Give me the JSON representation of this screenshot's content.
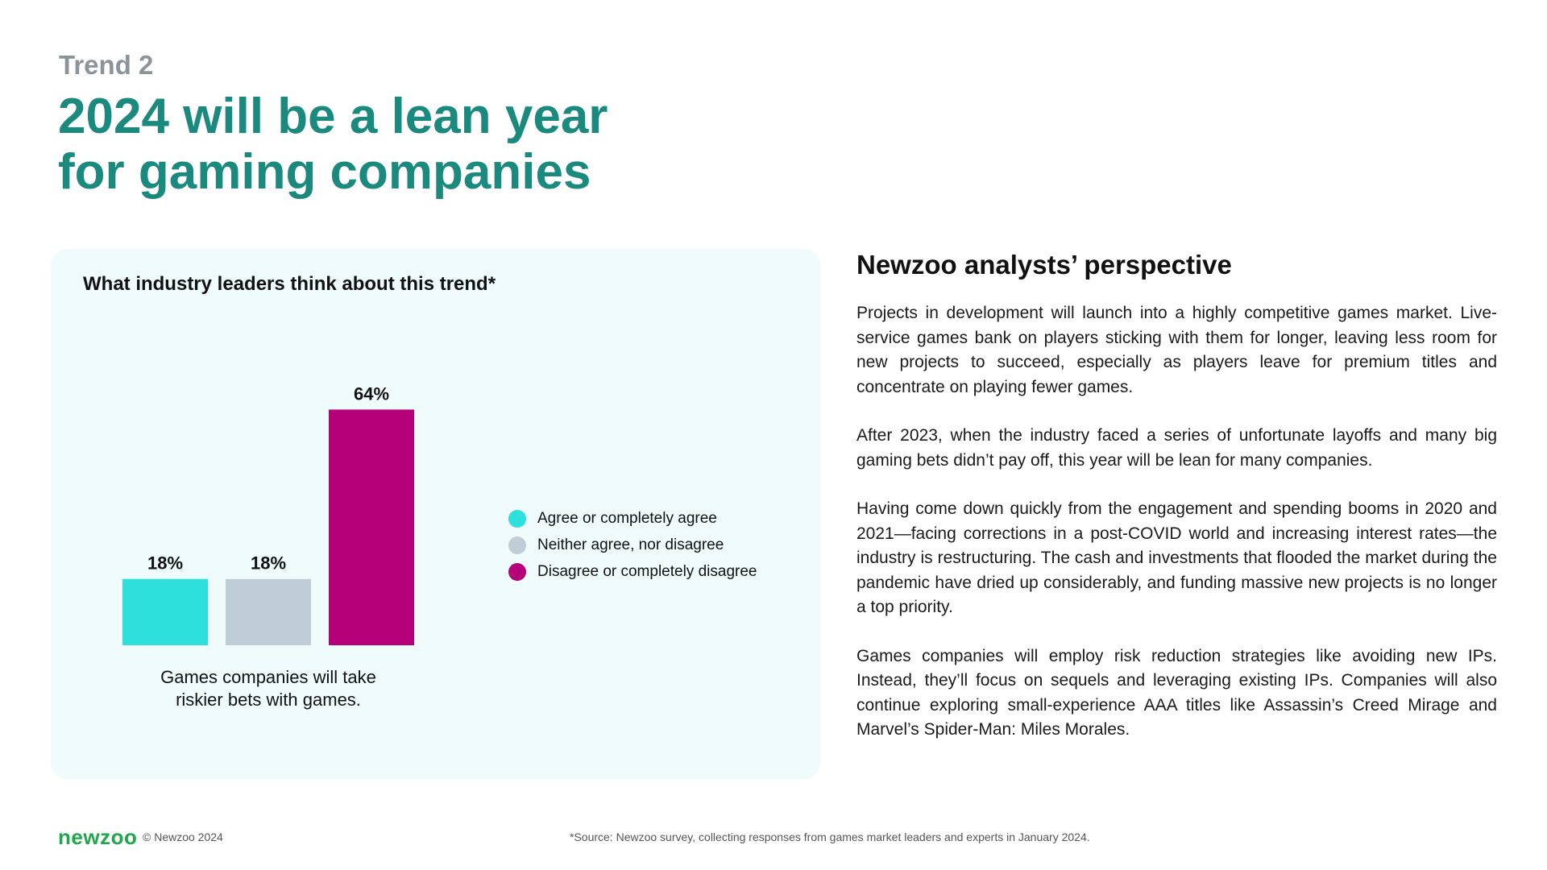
{
  "header": {
    "trend_label": "Trend 2",
    "title_line1": "2024 will be a lean year",
    "title_line2": "for gaming companies"
  },
  "chart_panel": {
    "title": "What industry leaders think about this trend*"
  },
  "chart_data": {
    "type": "bar",
    "title": "What industry leaders think about this trend*",
    "categories": [
      "Games companies will take riskier bets with games."
    ],
    "category_lines": [
      "Games companies will take",
      "riskier bets with games."
    ],
    "ylim": [
      0,
      70
    ],
    "series": [
      {
        "name": "Agree or completely agree",
        "values": [
          18
        ],
        "label": "18%",
        "color": "#2de0dc"
      },
      {
        "name": "Neither agree, nor disagree",
        "values": [
          18
        ],
        "label": "18%",
        "color": "#c0ccd6"
      },
      {
        "name": "Disagree or completely disagree",
        "values": [
          64
        ],
        "label": "64%",
        "color": "#b5007a"
      }
    ],
    "legend_position": "right"
  },
  "perspective": {
    "heading": "Newzoo analysts’ perspective",
    "paragraphs": [
      "Projects in development will launch into a highly competitive games market. Live-service games bank on players sticking with them for longer, leaving less room for new projects to succeed, especially as players leave for premium titles and concentrate on playing fewer games.",
      "After 2023, when the industry faced a series of unfortunate layoffs and many big gaming bets didn’t pay off, this year will be lean for many companies.",
      "Having come down quickly from the engagement and spending booms in 2020 and 2021—facing corrections in a post-COVID world and increasing interest rates—the industry is restructuring. The cash and investments that flooded the market during the pandemic have dried up considerably, and funding massive new projects is no longer a top priority.",
      "Games companies will employ risk reduction strategies like avoiding new IPs. Instead, they’ll focus on sequels and leveraging existing IPs. Companies will also continue exploring small-experience AAA titles like Assassin’s Creed Mirage and Marvel’s Spider-Man: Miles Morales."
    ]
  },
  "footer": {
    "logo": "newzoo",
    "copyright": "© Newzoo 2024",
    "source": "*Source: Newzoo survey, collecting responses from games market leaders and experts in January 2024."
  }
}
